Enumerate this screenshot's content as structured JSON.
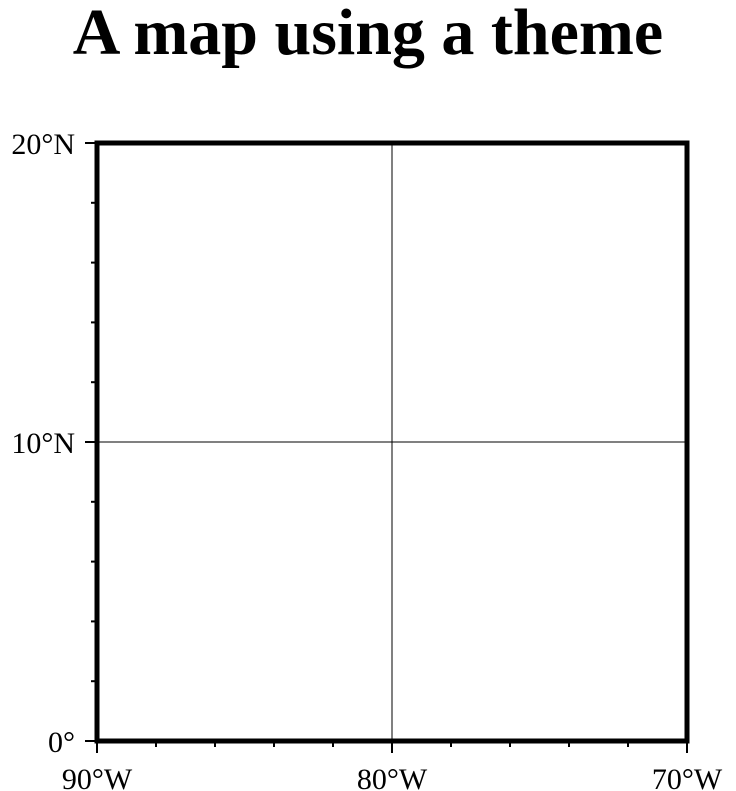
{
  "title": "A map using a theme",
  "map": {
    "region": {
      "lon": [
        -90,
        -70
      ],
      "lat": [
        0,
        20
      ]
    },
    "frame_style": "plain",
    "gridlines": true,
    "x_ticks": [
      {
        "value": -90,
        "label": "90°W"
      },
      {
        "value": -80,
        "label": "80°W"
      },
      {
        "value": -70,
        "label": "70°W"
      }
    ],
    "y_ticks": [
      {
        "value": 0,
        "label": "0°"
      },
      {
        "value": 10,
        "label": "10°N"
      },
      {
        "value": 20,
        "label": "20°N"
      }
    ],
    "minor_tick_interval": 2,
    "colors": {
      "frame": "#000000",
      "grid": "#000000",
      "background": "#ffffff"
    }
  }
}
